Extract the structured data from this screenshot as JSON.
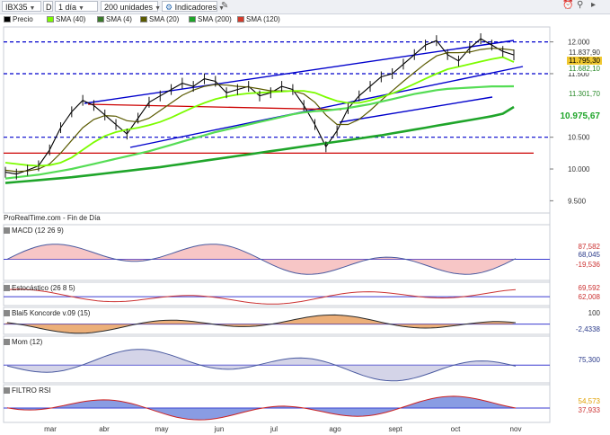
{
  "toolbar": {
    "symbol": "IBX35",
    "d_label": "D",
    "timeframe": "1 día",
    "units": "200 unidades",
    "indicators_label": "Indicadores"
  },
  "legend": {
    "price": "Precio",
    "sma40": "SMA (40)",
    "sma4": "SMA (4)",
    "sma20": "SMA (20)",
    "sma200": "SMA (200)",
    "sma120": "SMA (120)"
  },
  "colors": {
    "price": "#000000",
    "sma40": "#7cfc00",
    "sma4": "#3a7a2a",
    "sma20": "#5a5a00",
    "sma200": "#1fa52a",
    "sma120": "#d43a2a",
    "channel": "#0000cc",
    "resistance": "#cc0000",
    "level": "#0000cc"
  },
  "source_label": "ProRealTime.com - Fin de Día",
  "price_axis": [
    "12.000",
    "11.500",
    "10.500",
    "10.000",
    "9.500"
  ],
  "price_tags": {
    "t1": "11.837,90",
    "t2": "11.795,30",
    "t3": "11.682,10",
    "t4": "11.301,70",
    "t5": "10.975,67"
  },
  "panels": {
    "macd": {
      "label": "MACD (12 26 9)",
      "v1": "87,582",
      "v2": "68,045",
      "v3": "-19,536"
    },
    "stoch": {
      "label": "Estocástico (26 8 5)",
      "v1": "69,592",
      "v2": "62,008"
    },
    "blai": {
      "label": "Blai5 Koncorde v.09 (15)",
      "v1": "100",
      "v2": "-2,4338"
    },
    "mom": {
      "label": "Mom (12)",
      "v1": "75,300"
    },
    "rsi": {
      "label": "FILTRO RSI",
      "v1": "54,573",
      "v2": "37,933"
    }
  },
  "months": [
    "mar",
    "abr",
    "may",
    "jun",
    "jul",
    "ago",
    "sept",
    "oct",
    "nov"
  ],
  "chart_data": {
    "type": "line",
    "series": [
      {
        "name": "Precio",
        "values": [
          9950,
          9920,
          9980,
          10050,
          10300,
          10650,
          10900,
          11080,
          11000,
          10850,
          10700,
          10550,
          10800,
          11050,
          11150,
          11250,
          11350,
          11300,
          11420,
          11380,
          11200,
          11250,
          11300,
          11150,
          11200,
          11300,
          11250,
          11000,
          10700,
          10350,
          10600,
          10950,
          11150,
          11300,
          11450,
          11500,
          11650,
          11800,
          11950,
          12020,
          11800,
          11700,
          11900,
          12050,
          11950,
          11850,
          11795
        ]
      },
      {
        "name": "SMA (20)",
        "values": [
          9980,
          9960,
          9970,
          10000,
          10080,
          10250,
          10450,
          10650,
          10780,
          10840,
          10830,
          10760,
          10740,
          10800,
          10920,
          11040,
          11160,
          11240,
          11300,
          11330,
          11320,
          11300,
          11290,
          11260,
          11230,
          11230,
          11230,
          11180,
          11050,
          10850,
          10700,
          10700,
          10780,
          10920,
          11080,
          11230,
          11380,
          11520,
          11660,
          11780,
          11830,
          11830,
          11840,
          11880,
          11900,
          11890,
          11870
        ]
      },
      {
        "name": "SMA (40)",
        "values": [
          10100,
          10080,
          10060,
          10050,
          10060,
          10100,
          10180,
          10300,
          10420,
          10520,
          10580,
          10620,
          10650,
          10690,
          10740,
          10810,
          10890,
          10970,
          11040,
          11100,
          11140,
          11170,
          11190,
          11200,
          11210,
          11220,
          11230,
          11230,
          11200,
          11130,
          11070,
          11040,
          11040,
          11080,
          11130,
          11190,
          11260,
          11340,
          11420,
          11500,
          11570,
          11610,
          11650,
          11690,
          11730,
          11760,
          11682
        ]
      },
      {
        "name": "SMA (120)",
        "values": [
          9850,
          9870,
          9890,
          9910,
          9940,
          9970,
          10000,
          10040,
          10080,
          10120,
          10160,
          10200,
          10240,
          10280,
          10330,
          10380,
          10430,
          10480,
          10530,
          10580,
          10620,
          10660,
          10700,
          10740,
          10780,
          10820,
          10860,
          10890,
          10910,
          10920,
          10940,
          10960,
          10990,
          11020,
          11060,
          11100,
          11140,
          11180,
          11210,
          11240,
          11260,
          11270,
          11280,
          11290,
          11300,
          11300,
          11302
        ]
      },
      {
        "name": "SMA (200)",
        "values": [
          9780,
          9795,
          9810,
          9825,
          9840,
          9855,
          9870,
          9890,
          9910,
          9930,
          9950,
          9970,
          9990,
          10010,
          10030,
          10055,
          10080,
          10105,
          10130,
          10155,
          10180,
          10205,
          10230,
          10255,
          10280,
          10305,
          10330,
          10355,
          10380,
          10405,
          10430,
          10455,
          10480,
          10505,
          10530,
          10560,
          10590,
          10620,
          10650,
          10680,
          10710,
          10740,
          10770,
          10800,
          10830,
          10870,
          10976
        ]
      }
    ],
    "y_axis": {
      "min": 9350,
      "max": 12150,
      "ticks": [
        12000,
        11500,
        10500,
        10000,
        9500
      ]
    },
    "levels": [
      12000,
      11500,
      10500
    ],
    "resistance_level": 10250,
    "x_labels": [
      "mar",
      "abr",
      "may",
      "jun",
      "jul",
      "ago",
      "sept",
      "oct",
      "nov"
    ]
  }
}
